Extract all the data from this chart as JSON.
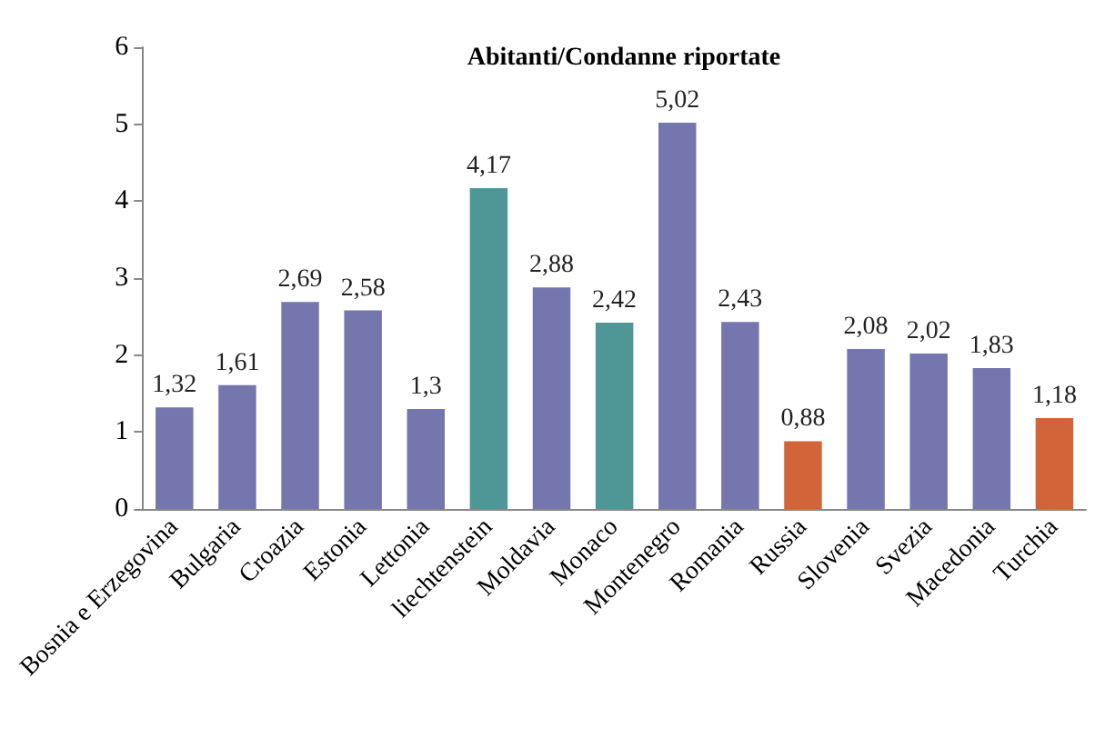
{
  "chart_data": {
    "type": "bar",
    "title": "Abitanti/Condanne riportate",
    "categories": [
      "Bosnia e Erzegovina",
      "Bulgaria",
      "Croazia",
      "Estonia",
      "Lettonia",
      "liechtenstein",
      "Moldavia",
      "Monaco",
      "Montenegro",
      "Romania",
      "Russia",
      "Slovenia",
      "Svezia",
      "Macedonia",
      "Turchia"
    ],
    "values": [
      1.32,
      1.61,
      2.69,
      2.58,
      1.3,
      4.17,
      2.88,
      2.42,
      5.02,
      2.43,
      0.88,
      2.08,
      2.02,
      1.83,
      1.18
    ],
    "value_labels": [
      "1,32",
      "1,61",
      "2,69",
      "2,58",
      "1,3",
      "4,17",
      "2,88",
      "2,42",
      "5,02",
      "2,43",
      "0,88",
      "2,08",
      "2,02",
      "1,83",
      "1,18"
    ],
    "colors": [
      "#7476ad",
      "#7476ad",
      "#7476ad",
      "#7476ad",
      "#7476ad",
      "#4f9797",
      "#7476ad",
      "#4f9797",
      "#7476ad",
      "#7476ad",
      "#d2643a",
      "#7476ad",
      "#7476ad",
      "#7476ad",
      "#d2643a"
    ],
    "ylim": [
      0,
      6
    ],
    "yticks": [
      0,
      1,
      2,
      3,
      4,
      5,
      6
    ],
    "grid": false
  }
}
